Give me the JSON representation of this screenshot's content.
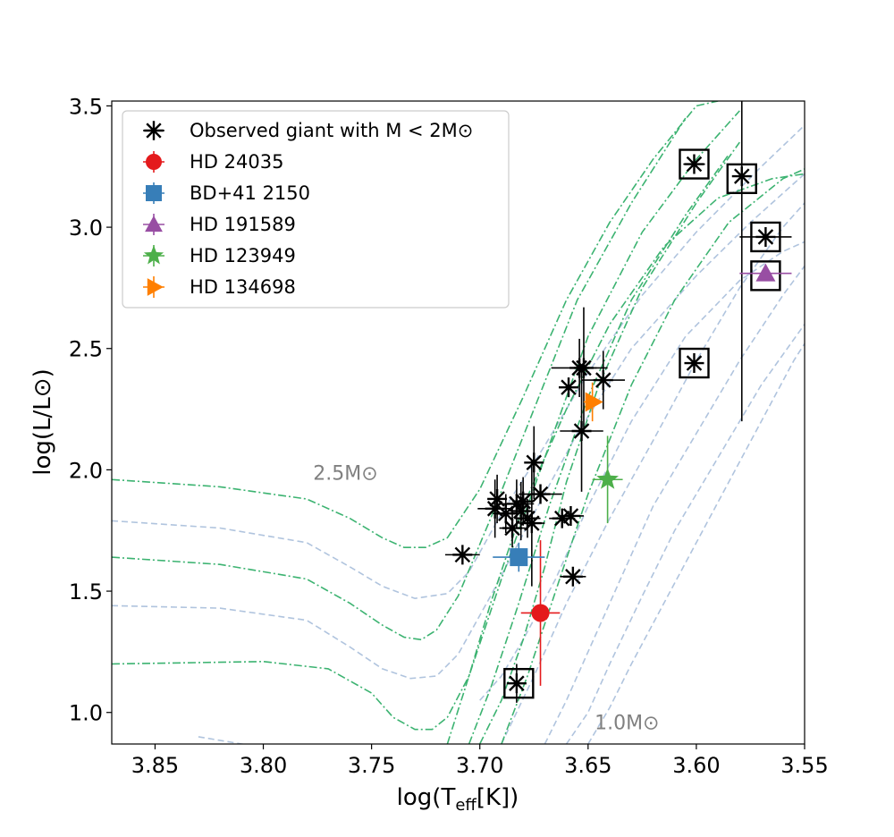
{
  "chart_data": {
    "type": "scatter",
    "title": "",
    "xlabel": "log(T",
    "xlabel_sub": "eff",
    "xlabel_suffix": "[K])",
    "ylabel": "log(L/L⊙)",
    "xlim": [
      3.87,
      3.55
    ],
    "ylim": [
      0.87,
      3.52
    ],
    "x_ticks": [
      3.85,
      3.8,
      3.75,
      3.7,
      3.65,
      3.6,
      3.55
    ],
    "x_tick_labels": [
      "3.85",
      "3.80",
      "3.75",
      "3.70",
      "3.65",
      "3.60",
      "3.55"
    ],
    "y_ticks": [
      1.0,
      1.5,
      2.0,
      2.5,
      3.0,
      3.5
    ],
    "y_tick_labels": [
      "1.0",
      "1.5",
      "2.0",
      "2.5",
      "3.0",
      "3.5"
    ],
    "grid": false,
    "legend_position": "top-left",
    "legend": [
      {
        "label": "Observed giant with M < 2M⊙",
        "marker": "asterisk",
        "color": "#000000"
      },
      {
        "label": "HD 24035",
        "marker": "circle",
        "color": "#e41a1c"
      },
      {
        "label": "BD+41 2150",
        "marker": "square",
        "color": "#377eb8"
      },
      {
        "label": "HD 191589",
        "marker": "triangle-up",
        "color": "#984ea3"
      },
      {
        "label": "HD 123949",
        "marker": "star",
        "color": "#4daf4a"
      },
      {
        "label": "HD 134698",
        "marker": "triangle-right",
        "color": "#ff7f00"
      }
    ],
    "annotations": [
      {
        "text": "2.5M⊙",
        "x": 3.777,
        "y": 1.96
      },
      {
        "text": "1.0M⊙",
        "x": 3.647,
        "y": 0.93
      }
    ],
    "observed_giants": [
      {
        "x": 3.708,
        "y": 1.65,
        "xerr": 0.008,
        "yerr": 0.0
      },
      {
        "x": 3.693,
        "y": 1.84,
        "xerr": 0.008,
        "yerr": 0.12
      },
      {
        "x": 3.692,
        "y": 1.88,
        "xerr": 0.0,
        "yerr": 0.1
      },
      {
        "x": 3.688,
        "y": 1.82,
        "xerr": 0.006,
        "yerr": 0.08
      },
      {
        "x": 3.685,
        "y": 1.76,
        "xerr": 0.006,
        "yerr": 0.08
      },
      {
        "x": 3.683,
        "y": 1.86,
        "xerr": 0.008,
        "yerr": 0.1
      },
      {
        "x": 3.681,
        "y": 1.83,
        "xerr": 0.005,
        "yerr": 0.12
      },
      {
        "x": 3.68,
        "y": 1.87,
        "xerr": 0.005,
        "yerr": 0.1
      },
      {
        "x": 3.678,
        "y": 1.8,
        "xerr": 0.006,
        "yerr": 0.08
      },
      {
        "x": 3.676,
        "y": 1.78,
        "xerr": 0.006,
        "yerr": 0.26
      },
      {
        "x": 3.675,
        "y": 2.03,
        "xerr": 0.0,
        "yerr": 0.15
      },
      {
        "x": 3.672,
        "y": 1.9,
        "xerr": 0.01,
        "yerr": 0.0
      },
      {
        "x": 3.662,
        "y": 1.8,
        "xerr": 0.006,
        "yerr": 0.0
      },
      {
        "x": 3.658,
        "y": 1.81,
        "xerr": 0.006,
        "yerr": 0.0
      },
      {
        "x": 3.657,
        "y": 1.56,
        "xerr": 0.006,
        "yerr": 0.0
      },
      {
        "x": 3.659,
        "y": 2.34,
        "xerr": 0.004,
        "yerr": 0.0
      },
      {
        "x": 3.654,
        "y": 2.42,
        "xerr": 0.013,
        "yerr": 0.12
      },
      {
        "x": 3.652,
        "y": 2.42,
        "xerr": 0.006,
        "yerr": 0.25
      },
      {
        "x": 3.653,
        "y": 2.16,
        "xerr": 0.01,
        "yerr": 0.25
      },
      {
        "x": 3.643,
        "y": 2.37,
        "xerr": 0.01,
        "yerr": 0.12
      },
      {
        "x": 3.683,
        "y": 1.12,
        "xerr": 0.004,
        "yerr": 0.08
      },
      {
        "x": 3.601,
        "y": 3.26,
        "xerr": 0.005,
        "yerr": 0.0
      },
      {
        "x": 3.579,
        "y": 3.21,
        "xerr": 0.0,
        "yerr": 1.01
      },
      {
        "x": 3.568,
        "y": 2.96,
        "xerr": 0.012,
        "yerr": 0.0
      },
      {
        "x": 3.601,
        "y": 2.44,
        "xerr": 0.0,
        "yerr": 0.0
      }
    ],
    "boxed_points": [
      {
        "x": 3.601,
        "y": 3.26
      },
      {
        "x": 3.579,
        "y": 3.2
      },
      {
        "x": 3.568,
        "y": 2.96
      },
      {
        "x": 3.568,
        "y": 2.8
      },
      {
        "x": 3.601,
        "y": 2.44
      },
      {
        "x": 3.682,
        "y": 1.12
      }
    ],
    "highlighted_stars": [
      {
        "name": "HD 24035",
        "marker": "circle",
        "color": "#e41a1c",
        "x": 3.672,
        "y": 1.41,
        "xerr": 0.009,
        "yerr": 0.3
      },
      {
        "name": "BD+41 2150",
        "marker": "square",
        "color": "#377eb8",
        "x": 3.682,
        "y": 1.64,
        "xerr": 0.012,
        "yerr": 0.06
      },
      {
        "name": "HD 191589",
        "marker": "triangle-up",
        "color": "#984ea3",
        "x": 3.568,
        "y": 2.81,
        "xerr": 0.012,
        "yerr": 0.0
      },
      {
        "name": "HD 123949",
        "marker": "star",
        "color": "#4daf4a",
        "x": 3.641,
        "y": 1.96,
        "xerr": 0.007,
        "yerr": 0.18
      },
      {
        "name": "HD 134698",
        "marker": "triangle-right",
        "color": "#ff7f00",
        "x": 3.648,
        "y": 2.28,
        "xerr": 0.004,
        "yerr": 0.08
      }
    ],
    "tracks": {
      "green_dashdot": {
        "color": "#3cb371",
        "series": [
          {
            "name": "track-g1",
            "x": [
              3.87,
              3.82,
              3.78,
              3.76,
              3.745,
              3.735,
              3.725,
              3.715,
              3.7,
              3.68,
              3.66,
              3.64,
              3.62,
              3.6,
              3.59
            ],
            "y": [
              1.96,
              1.93,
              1.88,
              1.8,
              1.72,
              1.68,
              1.68,
              1.72,
              1.92,
              2.3,
              2.7,
              3.02,
              3.28,
              3.5,
              3.52
            ]
          },
          {
            "name": "track-g2",
            "x": [
              3.87,
              3.82,
              3.78,
              3.76,
              3.745,
              3.735,
              3.727,
              3.72,
              3.71,
              3.695,
              3.675,
              3.655,
              3.63,
              3.605
            ],
            "y": [
              1.64,
              1.61,
              1.55,
              1.45,
              1.36,
              1.31,
              1.3,
              1.34,
              1.48,
              1.8,
              2.25,
              2.7,
              3.1,
              3.45
            ]
          },
          {
            "name": "track-g3",
            "x": [
              3.87,
              3.8,
              3.77,
              3.75,
              3.74,
              3.73,
              3.722,
              3.715,
              3.705,
              3.69,
              3.67,
              3.65,
              3.625,
              3.6,
              3.58
            ],
            "y": [
              1.2,
              1.21,
              1.18,
              1.08,
              0.98,
              0.93,
              0.93,
              0.98,
              1.15,
              1.55,
              2.05,
              2.55,
              2.98,
              3.28,
              3.48
            ]
          },
          {
            "name": "track-g4",
            "x": [
              3.7,
              3.69,
              3.68,
              3.67,
              3.66,
              3.645,
              3.625,
              3.6,
              3.58
            ],
            "y": [
              0.87,
              1.05,
              1.3,
              1.6,
              1.95,
              2.35,
              2.75,
              3.1,
              3.35
            ]
          },
          {
            "name": "track-g5",
            "x": [
              3.705,
              3.695,
              3.682,
              3.668,
              3.65,
              3.63,
              3.605,
              3.585
            ],
            "y": [
              0.87,
              1.1,
              1.45,
              1.85,
              2.3,
              2.7,
              3.05,
              3.3
            ]
          },
          {
            "name": "track-g6",
            "x": [
              3.69,
              3.678,
              3.665,
              3.65,
              3.63,
              3.61,
              3.585,
              3.56,
              3.55
            ],
            "y": [
              0.87,
              1.15,
              1.5,
              1.9,
              2.35,
              2.7,
              3.02,
              3.2,
              3.24
            ]
          },
          {
            "name": "track-g7",
            "x": [
              3.715,
              3.705,
              3.695,
              3.68,
              3.66,
              3.64,
              3.615,
              3.59,
              3.565,
              3.55
            ],
            "y": [
              0.87,
              1.15,
              1.45,
              1.85,
              2.25,
              2.6,
              2.92,
              3.12,
              3.2,
              3.22
            ]
          }
        ]
      },
      "blue_dashed": {
        "color": "#b0c4de",
        "series": [
          {
            "name": "track-b1",
            "x": [
              3.87,
              3.82,
              3.78,
              3.76,
              3.745,
              3.73,
              3.715,
              3.705,
              3.69,
              3.67,
              3.65,
              3.625,
              3.6,
              3.57,
              3.55
            ],
            "y": [
              1.79,
              1.76,
              1.7,
              1.6,
              1.52,
              1.47,
              1.49,
              1.58,
              1.82,
              2.1,
              2.4,
              2.72,
              2.98,
              3.25,
              3.42
            ]
          },
          {
            "name": "track-b2",
            "x": [
              3.87,
              3.82,
              3.78,
              3.76,
              3.745,
              3.732,
              3.72,
              3.71,
              3.695,
              3.675,
              3.655,
              3.63,
              3.6,
              3.575,
              3.55
            ],
            "y": [
              1.44,
              1.43,
              1.38,
              1.27,
              1.18,
              1.14,
              1.15,
              1.24,
              1.48,
              1.82,
              2.15,
              2.5,
              2.8,
              3.02,
              3.22
            ]
          },
          {
            "name": "track-b3",
            "x": [
              3.83,
              3.81,
              3.79,
              3.77,
              3.75,
              3.74
            ],
            "y": [
              0.9,
              0.87,
              0.84,
              0.81,
              0.79,
              0.78
            ]
          },
          {
            "name": "track-b4",
            "x": [
              3.7,
              3.69,
              3.68,
              3.665,
              3.65,
              3.63,
              3.605,
              3.58,
              3.56,
              3.55
            ],
            "y": [
              1.05,
              1.15,
              1.3,
              1.55,
              1.85,
              2.2,
              2.55,
              2.78,
              2.9,
              2.94
            ]
          },
          {
            "name": "track-b5",
            "x": [
              3.67,
              3.66,
              3.65,
              3.635,
              3.62,
              3.6,
              3.58,
              3.56,
              3.55
            ],
            "y": [
              0.87,
              1.05,
              1.25,
              1.55,
              1.85,
              2.15,
              2.45,
              2.72,
              2.84
            ]
          },
          {
            "name": "track-b6",
            "x": [
              3.66,
              3.65,
              3.64,
              3.625,
              3.61,
              3.59,
              3.57,
              3.55
            ],
            "y": [
              0.87,
              1.0,
              1.2,
              1.48,
              1.75,
              2.05,
              2.35,
              2.6
            ]
          },
          {
            "name": "track-b7",
            "x": [
              3.69,
              3.675,
              3.66,
              3.64,
              3.62,
              3.6,
              3.58,
              3.56,
              3.55
            ],
            "y": [
              0.87,
              1.15,
              1.45,
              1.8,
              2.12,
              2.45,
              2.75,
              3.0,
              3.1
            ]
          },
          {
            "name": "track-b8",
            "x": [
              3.65,
              3.64,
              3.63,
              3.615,
              3.6,
              3.585,
              3.57,
              3.555,
              3.55
            ],
            "y": [
              0.87,
              1.02,
              1.2,
              1.45,
              1.7,
              1.95,
              2.2,
              2.45,
              2.52
            ]
          }
        ]
      }
    }
  }
}
